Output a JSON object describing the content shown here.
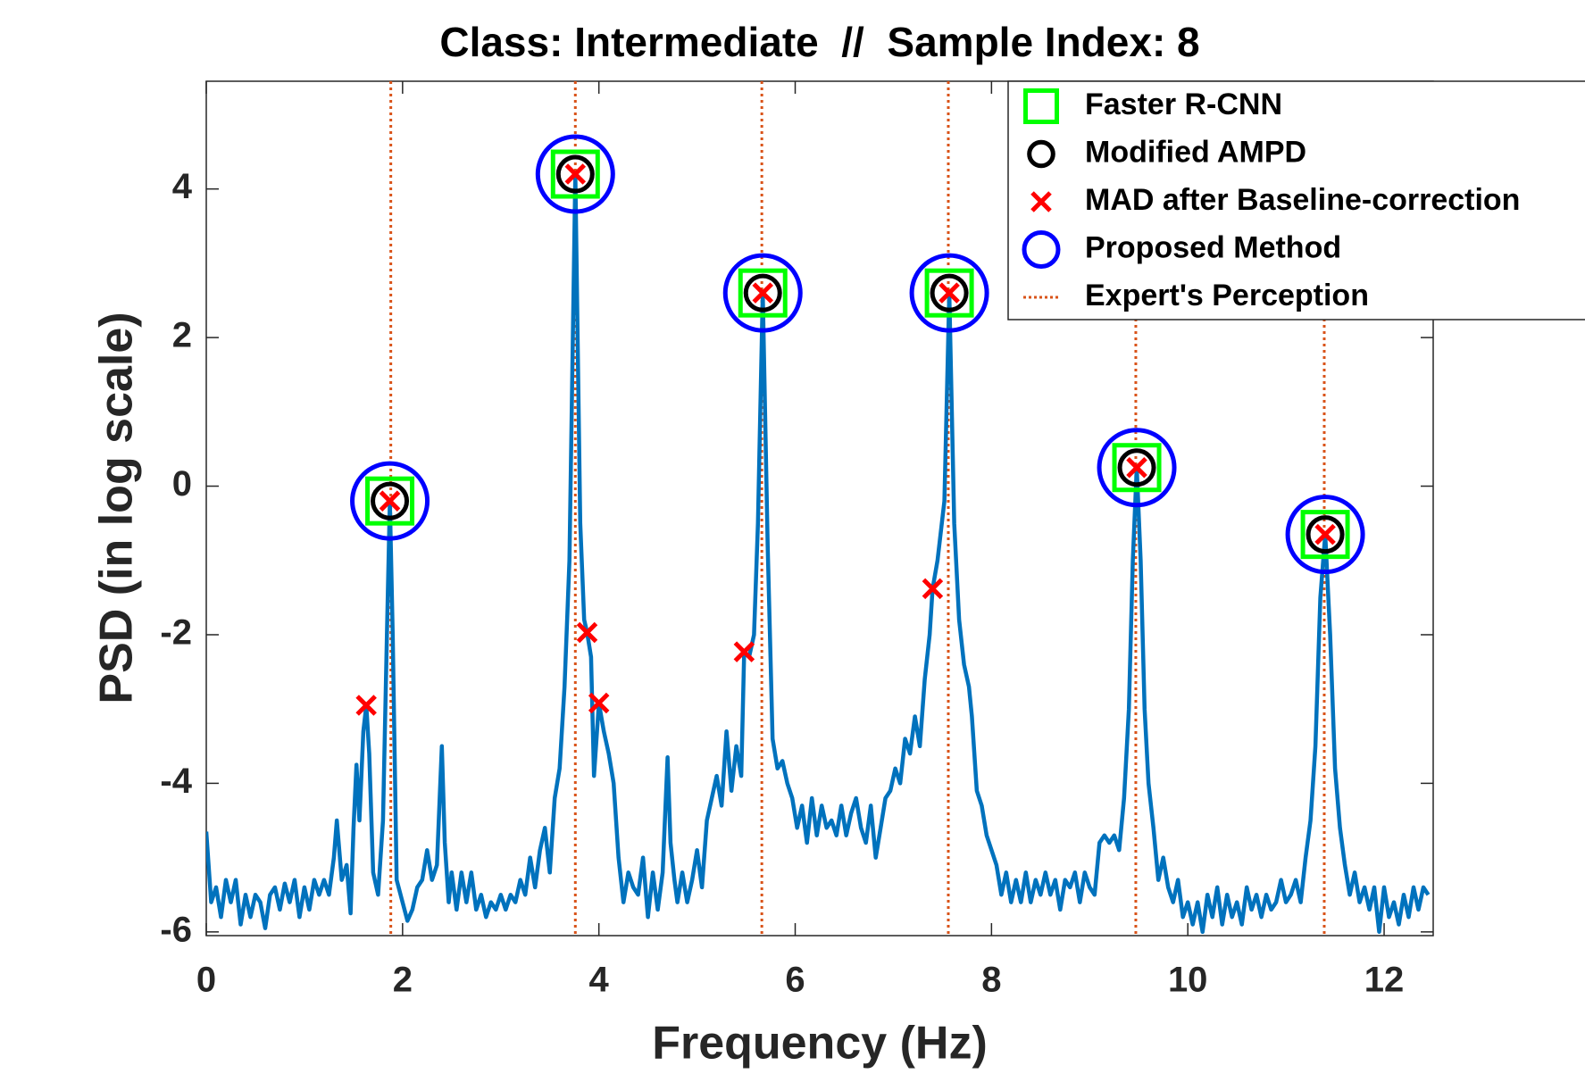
{
  "chart_data": {
    "type": "line",
    "title": "Class: Intermediate  //  Sample Index: 8",
    "xlabel": "Frequency (Hz)",
    "ylabel": "PSD (in log scale)",
    "xlim": [
      0,
      12.5
    ],
    "ylim": [
      -6.05,
      5.45
    ],
    "xticks": [
      0,
      2,
      4,
      6,
      8,
      10,
      12
    ],
    "yticks": [
      -6,
      -4,
      -2,
      0,
      2,
      4
    ],
    "legend": "northeast",
    "line": {
      "color": "#0072bd",
      "x": [
        0,
        0.05,
        0.1,
        0.15,
        0.2,
        0.25,
        0.3,
        0.35,
        0.4,
        0.45,
        0.5,
        0.55,
        0.6,
        0.65,
        0.7,
        0.75,
        0.8,
        0.85,
        0.9,
        0.95,
        1.0,
        1.05,
        1.1,
        1.15,
        1.2,
        1.25,
        1.3,
        1.33,
        1.38,
        1.43,
        1.47,
        1.5,
        1.53,
        1.56,
        1.6,
        1.63,
        1.66,
        1.7,
        1.75,
        1.8,
        1.84,
        1.87,
        1.9,
        1.94,
        2.0,
        2.05,
        2.1,
        2.15,
        2.2,
        2.25,
        2.3,
        2.35,
        2.4,
        2.43,
        2.47,
        2.5,
        2.55,
        2.6,
        2.65,
        2.7,
        2.75,
        2.8,
        2.85,
        2.9,
        2.95,
        3.0,
        3.05,
        3.1,
        3.15,
        3.2,
        3.25,
        3.3,
        3.35,
        3.4,
        3.45,
        3.5,
        3.55,
        3.6,
        3.65,
        3.7,
        3.76,
        3.81,
        3.85,
        3.88,
        3.92,
        3.95,
        4.0,
        4.05,
        4.1,
        4.15,
        4.2,
        4.25,
        4.3,
        4.35,
        4.4,
        4.45,
        4.5,
        4.55,
        4.6,
        4.65,
        4.7,
        4.73,
        4.77,
        4.8,
        4.85,
        4.9,
        4.95,
        5.0,
        5.05,
        5.1,
        5.15,
        5.2,
        5.25,
        5.3,
        5.35,
        5.4,
        5.45,
        5.48,
        5.53,
        5.58,
        5.62,
        5.67,
        5.72,
        5.77,
        5.82,
        5.87,
        5.92,
        5.97,
        6.02,
        6.07,
        6.12,
        6.17,
        6.22,
        6.27,
        6.32,
        6.37,
        6.42,
        6.47,
        6.52,
        6.57,
        6.62,
        6.67,
        6.72,
        6.77,
        6.82,
        6.87,
        6.92,
        6.97,
        7.02,
        7.07,
        7.12,
        7.17,
        7.22,
        7.27,
        7.32,
        7.37,
        7.4,
        7.45,
        7.52,
        7.57,
        7.62,
        7.67,
        7.72,
        7.77,
        7.8,
        7.85,
        7.9,
        7.95,
        8.0,
        8.05,
        8.1,
        8.15,
        8.2,
        8.25,
        8.3,
        8.35,
        8.4,
        8.45,
        8.5,
        8.55,
        8.6,
        8.65,
        8.7,
        8.75,
        8.8,
        8.85,
        8.9,
        8.95,
        9.0,
        9.05,
        9.1,
        9.15,
        9.2,
        9.25,
        9.3,
        9.35,
        9.4,
        9.44,
        9.48,
        9.52,
        9.56,
        9.6,
        9.65,
        9.7,
        9.75,
        9.8,
        9.85,
        9.9,
        9.95,
        10.0,
        10.05,
        10.1,
        10.15,
        10.2,
        10.25,
        10.3,
        10.35,
        10.4,
        10.45,
        10.5,
        10.55,
        10.6,
        10.65,
        10.7,
        10.75,
        10.8,
        10.85,
        10.9,
        10.95,
        11.0,
        11.05,
        11.1,
        11.15,
        11.2,
        11.25,
        11.3,
        11.35,
        11.4,
        11.45,
        11.5,
        11.55,
        11.6,
        11.65,
        11.7,
        11.75,
        11.8,
        11.85,
        11.9,
        11.95,
        12.0,
        12.05,
        12.1,
        12.15,
        12.2,
        12.25,
        12.3,
        12.35,
        12.4,
        12.45
      ],
      "values": [
        -4.65,
        -5.6,
        -5.4,
        -5.8,
        -5.3,
        -5.6,
        -5.3,
        -5.9,
        -5.5,
        -5.8,
        -5.5,
        -5.6,
        -5.95,
        -5.5,
        -5.4,
        -5.7,
        -5.35,
        -5.6,
        -5.3,
        -5.8,
        -5.4,
        -5.7,
        -5.3,
        -5.5,
        -5.3,
        -5.5,
        -5.0,
        -4.5,
        -5.3,
        -5.1,
        -5.75,
        -4.6,
        -3.75,
        -4.5,
        -3.3,
        -2.95,
        -3.6,
        -5.2,
        -5.5,
        -4.5,
        -2.0,
        -0.2,
        -2.0,
        -5.3,
        -5.6,
        -5.85,
        -5.7,
        -5.4,
        -5.3,
        -4.9,
        -5.3,
        -5.1,
        -3.5,
        -4.8,
        -5.6,
        -5.2,
        -5.7,
        -5.2,
        -5.6,
        -5.2,
        -5.7,
        -5.5,
        -5.8,
        -5.6,
        -5.7,
        -5.5,
        -5.7,
        -5.5,
        -5.6,
        -5.3,
        -5.5,
        -5.0,
        -5.4,
        -4.9,
        -4.6,
        -5.2,
        -4.2,
        -3.8,
        -2.7,
        -1.0,
        4.2,
        -0.5,
        -1.8,
        -1.97,
        -2.3,
        -3.9,
        -2.92,
        -3.3,
        -3.6,
        -4.0,
        -5.0,
        -5.6,
        -5.2,
        -5.4,
        -5.5,
        -5.0,
        -5.8,
        -5.2,
        -5.7,
        -5.2,
        -3.65,
        -4.8,
        -5.3,
        -5.6,
        -5.2,
        -5.6,
        -5.3,
        -4.9,
        -5.4,
        -4.5,
        -4.2,
        -3.9,
        -4.3,
        -3.3,
        -4.1,
        -3.5,
        -3.9,
        -2.23,
        -2.3,
        -2.0,
        -0.5,
        2.6,
        -0.8,
        -3.4,
        -3.8,
        -3.7,
        -4.0,
        -4.2,
        -4.6,
        -4.3,
        -4.8,
        -4.2,
        -4.7,
        -4.3,
        -4.6,
        -4.5,
        -4.7,
        -4.3,
        -4.7,
        -4.4,
        -4.2,
        -4.6,
        -4.8,
        -4.3,
        -5.0,
        -4.6,
        -4.2,
        -4.1,
        -3.8,
        -4.0,
        -3.4,
        -3.6,
        -3.1,
        -3.5,
        -2.6,
        -2.0,
        -1.38,
        -1.0,
        -0.2,
        2.6,
        -0.5,
        -1.8,
        -2.4,
        -2.7,
        -3.1,
        -4.1,
        -4.3,
        -4.7,
        -4.9,
        -5.1,
        -5.5,
        -5.2,
        -5.6,
        -5.3,
        -5.6,
        -5.2,
        -5.6,
        -5.3,
        -5.5,
        -5.2,
        -5.5,
        -5.3,
        -5.7,
        -5.3,
        -5.4,
        -5.2,
        -5.6,
        -5.2,
        -5.4,
        -5.5,
        -4.8,
        -4.7,
        -4.8,
        -4.7,
        -4.9,
        -4.2,
        -3.0,
        -1.0,
        0.25,
        -1.0,
        -3.0,
        -4.0,
        -4.6,
        -5.3,
        -5.0,
        -5.4,
        -5.6,
        -5.3,
        -5.8,
        -5.6,
        -5.9,
        -5.6,
        -6.0,
        -5.5,
        -5.8,
        -5.4,
        -5.9,
        -5.5,
        -5.8,
        -5.6,
        -5.9,
        -5.4,
        -5.7,
        -5.5,
        -5.8,
        -5.5,
        -5.7,
        -5.6,
        -5.3,
        -5.6,
        -5.5,
        -5.3,
        -5.6,
        -5.0,
        -4.5,
        -3.5,
        -1.5,
        -0.65,
        -2.0,
        -3.8,
        -4.6,
        -5.1,
        -5.5,
        -5.2,
        -5.6,
        -5.4,
        -5.7,
        -5.4,
        -6.0,
        -5.4,
        -5.8,
        -5.6,
        -5.9,
        -5.5,
        -5.8,
        -5.4,
        -5.7,
        -5.4,
        -5.5
      ]
    },
    "series": [
      {
        "name": "Faster R-CNN",
        "color": "#00ff00",
        "marker": "square",
        "x": [
          1.87,
          3.76,
          5.67,
          7.57,
          9.48,
          11.4
        ],
        "values": [
          -0.2,
          4.2,
          2.6,
          2.6,
          0.25,
          -0.65
        ]
      },
      {
        "name": "Modified AMPD",
        "color": "#000000",
        "marker": "circle",
        "x": [
          1.87,
          3.76,
          5.67,
          7.57,
          9.48,
          11.4
        ],
        "values": [
          -0.2,
          4.2,
          2.6,
          2.6,
          0.25,
          -0.65
        ]
      },
      {
        "name": "MAD after Baseline-correction",
        "color": "#ff0000",
        "marker": "x",
        "x": [
          1.63,
          1.87,
          3.76,
          3.88,
          4.0,
          5.48,
          5.67,
          7.4,
          7.57,
          9.48,
          11.4
        ],
        "values": [
          -2.95,
          -0.2,
          4.2,
          -1.97,
          -2.92,
          -2.23,
          2.6,
          -1.38,
          2.6,
          0.25,
          -0.65
        ]
      },
      {
        "name": "Proposed Method",
        "color": "#0000ff",
        "marker": "bigcircle",
        "x": [
          1.87,
          3.76,
          5.67,
          7.57,
          9.48,
          11.4
        ],
        "values": [
          -0.2,
          4.2,
          2.6,
          2.6,
          0.25,
          -0.65
        ]
      },
      {
        "name": "Expert's Perception",
        "color": "#d95319",
        "marker": "vline",
        "x": [
          1.88,
          3.76,
          5.66,
          7.56,
          9.47,
          11.39
        ]
      }
    ]
  }
}
